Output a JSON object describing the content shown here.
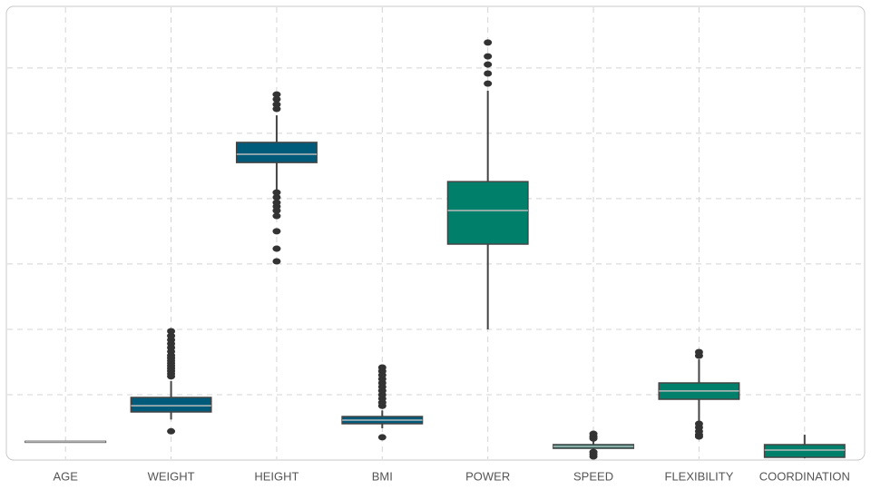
{
  "chart_data": {
    "type": "box",
    "categories": [
      "AGE",
      "WEIGHT",
      "HEIGHT",
      "BMI",
      "POWER",
      "SPEED",
      "FLEXIBILITY",
      "COORDINATION"
    ],
    "colors": [
      "#9a9a9a",
      "#005b7a",
      "#005b7a",
      "#005b7a",
      "#00806b",
      "#00806b",
      "#00806b",
      "#00806b"
    ],
    "boxes": [
      {
        "min": 13.5,
        "q1": 13.8,
        "median": 14,
        "q3": 14.3,
        "max": 14.6,
        "outliers": []
      },
      {
        "min": 31,
        "q1": 36.8,
        "median": 41.6,
        "q3": 47.9,
        "max": 60.4,
        "outliers": [
          22,
          64,
          66,
          68,
          70,
          72,
          74,
          76,
          78,
          80,
          83,
          86,
          89,
          92,
          95,
          98.6
        ]
      },
      {
        "min": 206,
        "q1": 227.6,
        "median": 233.9,
        "q3": 243,
        "max": 263.7,
        "outliers": [
          152,
          161.7,
          175,
          186.7,
          190.8,
          194,
          197,
          201,
          204.7,
          268.6,
          272,
          276,
          279.7
        ]
      },
      {
        "min": 24.3,
        "q1": 27.8,
        "median": 30.5,
        "q3": 33.3,
        "max": 38,
        "outliers": [
          17.4,
          41.5,
          44,
          47,
          50,
          53,
          56,
          59,
          62,
          65,
          68,
          70.8
        ]
      },
      {
        "min": 100,
        "q1": 165.2,
        "median": 190.9,
        "q3": 213,
        "max": 282.5,
        "outliers": [
          288,
          295.7,
          302.6,
          308.8,
          319.4
        ]
      },
      {
        "min": 6.9,
        "q1": 9,
        "median": 10.4,
        "q3": 11.8,
        "max": 15.3,
        "outliers": [
          2.8,
          4.5,
          6.2,
          16.5,
          18,
          20.1
        ]
      },
      {
        "min": 28.5,
        "q1": 46.5,
        "median": 52.8,
        "q3": 59,
        "max": 77,
        "outliers": [
          18,
          19.4,
          22,
          25,
          27.8,
          79.8,
          82.6
        ]
      },
      {
        "min": 1.4,
        "q1": 2.1,
        "median": 7.6,
        "q3": 11.8,
        "max": 19.4,
        "outliers": []
      }
    ],
    "ylim": [
      0,
      345
    ],
    "yticks": [
      50,
      100,
      150,
      200,
      250,
      300
    ],
    "grid": true
  }
}
